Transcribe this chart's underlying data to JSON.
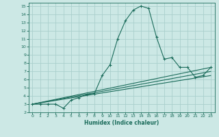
{
  "xlabel": "Humidex (Indice chaleur)",
  "bg_color": "#cce8e5",
  "grid_color": "#aacfcc",
  "line_color": "#1a6b5a",
  "xlim": [
    -0.5,
    23.5
  ],
  "ylim": [
    2,
    15.4
  ],
  "xticks": [
    0,
    1,
    2,
    3,
    4,
    5,
    6,
    7,
    8,
    9,
    10,
    11,
    12,
    13,
    14,
    15,
    16,
    17,
    18,
    19,
    20,
    21,
    22,
    23
  ],
  "yticks": [
    2,
    3,
    4,
    5,
    6,
    7,
    8,
    9,
    10,
    11,
    12,
    13,
    14,
    15
  ],
  "series": [
    [
      0,
      3.0
    ],
    [
      1,
      3.0
    ],
    [
      2,
      3.0
    ],
    [
      3,
      3.0
    ],
    [
      4,
      2.5
    ],
    [
      5,
      3.5
    ],
    [
      6,
      3.8
    ],
    [
      7,
      4.2
    ],
    [
      8,
      4.3
    ],
    [
      9,
      6.5
    ],
    [
      10,
      7.8
    ],
    [
      11,
      11.0
    ],
    [
      12,
      13.2
    ],
    [
      13,
      14.5
    ],
    [
      14,
      15.0
    ],
    [
      15,
      14.7
    ],
    [
      16,
      11.2
    ],
    [
      17,
      8.5
    ],
    [
      18,
      8.7
    ],
    [
      19,
      7.5
    ],
    [
      20,
      7.5
    ],
    [
      21,
      6.3
    ],
    [
      22,
      6.5
    ],
    [
      23,
      7.5
    ]
  ],
  "linear1": [
    0,
    3.0,
    23,
    7.5
  ],
  "linear2": [
    0,
    3.0,
    23,
    7.0
  ],
  "linear3": [
    0,
    3.0,
    23,
    6.5
  ]
}
